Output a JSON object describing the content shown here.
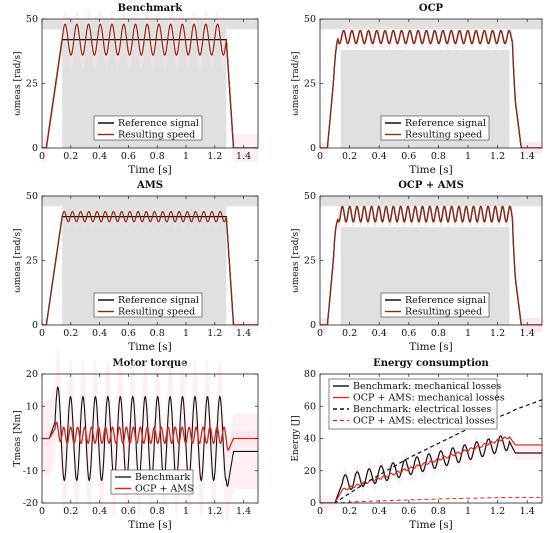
{
  "colors": {
    "benchmark": "#111111",
    "ocp_ams": "#cc2a1f",
    "resulting": "#8b2c14",
    "band": "#fbe2e7",
    "gray_region": "#e0e0e0"
  },
  "chart_data": [
    {
      "type": "line",
      "title": "Benchmark",
      "xlabel": "Time [s]",
      "ylabel": "ωmeas [rad/s]",
      "xlim": [
        0,
        1.5
      ],
      "ylim": [
        0,
        50
      ],
      "xticks": [
        "0",
        "0.2",
        "0.4",
        "0.6",
        "0.8",
        "1",
        "1.2",
        "1.4"
      ],
      "yticks": [
        "0",
        "25",
        "50"
      ],
      "grid": false,
      "legend_position": "bottom-center",
      "shaded": {
        "x_from": 0.14,
        "x_to": 1.28,
        "y_from": 0,
        "y_to": 46
      },
      "upper_band": {
        "y_from": 46,
        "y_to": 50
      },
      "series": [
        {
          "name": "Reference signal",
          "x": [
            0,
            0.03,
            0.14,
            1.28,
            1.33,
            1.5
          ],
          "y": [
            0,
            0,
            42,
            42,
            0,
            0
          ]
        },
        {
          "name": "Resulting speed",
          "x": [
            0,
            0.03,
            0.14,
            1.28,
            1.33,
            1.5
          ],
          "y": [
            0,
            0,
            42,
            42,
            0,
            0
          ],
          "oscillation": {
            "amplitude": 6,
            "cycles": 14
          }
        }
      ]
    },
    {
      "type": "line",
      "title": "OCP",
      "xlabel": "Time [s]",
      "ylabel": "ωmeas [rad/s]",
      "xlim": [
        0,
        1.5
      ],
      "ylim": [
        0,
        50
      ],
      "xticks": [
        "0",
        "0.2",
        "0.4",
        "0.6",
        "0.8",
        "1",
        "1.2",
        "1.4"
      ],
      "yticks": [
        "0",
        "25",
        "50"
      ],
      "grid": false,
      "legend_position": "bottom-center",
      "shaded": {
        "x_from": 0.14,
        "x_to": 1.28,
        "y_from": 0,
        "y_to": 38
      },
      "upper_band": {
        "y_from": 46,
        "y_to": 50
      },
      "series": [
        {
          "name": "Reference signal",
          "x": [
            0,
            0.05,
            0.09,
            0.12,
            1.3,
            1.32,
            1.36,
            1.5
          ],
          "y": [
            0,
            0,
            25,
            43,
            43,
            18,
            0,
            0
          ],
          "oscillation": {
            "amplitude": 2.5,
            "cycles": 22
          }
        },
        {
          "name": "Resulting speed",
          "x": [
            0,
            0.05,
            0.09,
            0.12,
            1.3,
            1.32,
            1.36,
            1.5
          ],
          "y": [
            0,
            0,
            25,
            43,
            43,
            18,
            0,
            0
          ],
          "oscillation": {
            "amplitude": 2.5,
            "cycles": 22
          }
        }
      ]
    },
    {
      "type": "line",
      "title": "AMS",
      "xlabel": "Time [s]",
      "ylabel": "ωmeas [rad/s]",
      "xlim": [
        0,
        1.5
      ],
      "ylim": [
        0,
        50
      ],
      "xticks": [
        "0",
        "0.2",
        "0.4",
        "0.6",
        "0.8",
        "1",
        "1.2",
        "1.4"
      ],
      "yticks": [
        "0",
        "25",
        "50"
      ],
      "grid": false,
      "legend_position": "bottom-center",
      "shaded": {
        "x_from": 0.14,
        "x_to": 1.28,
        "y_from": 0,
        "y_to": 46
      },
      "upper_band": {
        "y_from": 46,
        "y_to": 50
      },
      "series": [
        {
          "name": "Reference signal",
          "x": [
            0,
            0.03,
            0.14,
            1.28,
            1.33,
            1.5
          ],
          "y": [
            0,
            0,
            42,
            42,
            0,
            0
          ]
        },
        {
          "name": "Resulting speed",
          "x": [
            0,
            0.03,
            0.14,
            1.28,
            1.33,
            1.5
          ],
          "y": [
            0,
            0,
            42,
            42,
            0,
            0
          ],
          "oscillation": {
            "amplitude": 2,
            "cycles": 20
          }
        }
      ]
    },
    {
      "type": "line",
      "title": "OCP + AMS",
      "xlabel": "Time [s]",
      "ylabel": "ωmeas [rad/s]",
      "xlim": [
        0,
        1.5
      ],
      "ylim": [
        0,
        50
      ],
      "xticks": [
        "0",
        "0.2",
        "0.4",
        "0.6",
        "0.8",
        "1",
        "1.2",
        "1.4"
      ],
      "yticks": [
        "0",
        "25",
        "50"
      ],
      "grid": false,
      "legend_position": "bottom-center",
      "shaded": {
        "x_from": 0.14,
        "x_to": 1.28,
        "y_from": 0,
        "y_to": 38
      },
      "upper_band": {
        "y_from": 46,
        "y_to": 50
      },
      "series": [
        {
          "name": "Reference signal",
          "x": [
            0,
            0.05,
            0.09,
            0.12,
            1.3,
            1.32,
            1.36,
            1.5
          ],
          "y": [
            0,
            0,
            25,
            43,
            43,
            18,
            0,
            0
          ],
          "oscillation": {
            "amplitude": 3,
            "cycles": 25
          }
        },
        {
          "name": "Resulting speed",
          "x": [
            0,
            0.05,
            0.09,
            0.12,
            1.3,
            1.32,
            1.36,
            1.5
          ],
          "y": [
            0,
            0,
            25,
            43,
            43,
            18,
            0,
            0
          ],
          "oscillation": {
            "amplitude": 3,
            "cycles": 25
          }
        }
      ]
    },
    {
      "type": "line",
      "title": "Motor torque",
      "xlabel": "Time [s]",
      "ylabel": "Tmeas [Nm]",
      "xlim": [
        0,
        1.5
      ],
      "ylim": [
        -20,
        20
      ],
      "xticks": [
        "0",
        "0.2",
        "0.4",
        "0.6",
        "0.8",
        "1",
        "1.2",
        "1.4"
      ],
      "yticks": [
        "-20",
        "-10",
        "0",
        "10",
        "20"
      ],
      "grid": false,
      "legend_position": "bottom-center",
      "series": [
        {
          "name": "Benchmark",
          "x": [
            0,
            0.05,
            0.09,
            0.14,
            1.28,
            1.3,
            1.33,
            1.5
          ],
          "y": [
            0,
            0,
            5,
            0,
            0,
            -12,
            -4,
            -4
          ],
          "oscillation": {
            "amplitude": 13,
            "cycles": 14
          }
        },
        {
          "name": "OCP + AMS",
          "x": [
            0,
            0.05,
            0.09,
            0.14,
            1.28,
            1.3,
            1.33,
            1.5
          ],
          "y": [
            0,
            0,
            3,
            1,
            1,
            -3,
            0,
            0
          ],
          "oscillation": {
            "amplitude": 2.5,
            "cycles": 25
          }
        }
      ]
    },
    {
      "type": "line",
      "title": "Energy consumption",
      "xlabel": "Time [s]",
      "ylabel": "Energy [J]",
      "xlim": [
        0,
        1.5
      ],
      "ylim": [
        0,
        80
      ],
      "xticks": [
        "0",
        "0.2",
        "0.4",
        "0.6",
        "0.8",
        "1",
        "1.2",
        "1.4"
      ],
      "yticks": [
        "0",
        "20",
        "40",
        "60",
        "80"
      ],
      "grid": false,
      "legend_position": "top-left",
      "series": [
        {
          "name": "Benchmark: mechanical losses",
          "x": [
            0,
            0.1,
            0.15,
            1.28,
            1.32,
            1.5
          ],
          "y": [
            0,
            0,
            12,
            38,
            31,
            31
          ],
          "oscillation": {
            "amplitude": 5,
            "cycles": 14
          }
        },
        {
          "name": "OCP + AMS: mechanical losses",
          "x": [
            0,
            0.1,
            0.15,
            1.28,
            1.32,
            1.5
          ],
          "y": [
            0,
            0,
            8,
            41,
            36,
            36
          ],
          "oscillation": {
            "amplitude": 0.8,
            "cycles": 25
          }
        },
        {
          "name": "Benchmark: electrical losses",
          "x": [
            0,
            0.1,
            0.3,
            0.6,
            1.0,
            1.28,
            1.32,
            1.5
          ],
          "y": [
            0,
            0,
            12,
            28,
            46,
            56,
            58,
            64
          ]
        },
        {
          "name": "OCP + AMS: electrical losses",
          "x": [
            0,
            0.1,
            0.3,
            0.8,
            1.28,
            1.5
          ],
          "y": [
            0,
            0,
            1,
            2.5,
            3.5,
            3.5
          ]
        }
      ]
    }
  ]
}
